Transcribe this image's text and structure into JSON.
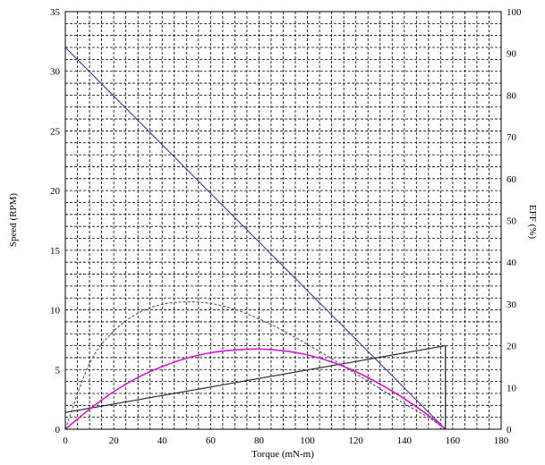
{
  "chart_data": {
    "type": "line",
    "title": "",
    "xlabel": "Torque (mN-m)",
    "ylabel": "Speed (RPM)",
    "y2label": "EFF (%)",
    "xlim": [
      0,
      180
    ],
    "ylim": [
      0,
      35
    ],
    "y2lim": [
      0,
      100
    ],
    "x_ticks": [
      "0",
      "20",
      "40",
      "60",
      "80",
      "100",
      "120",
      "140",
      "160",
      "180"
    ],
    "y_ticks": [
      "0",
      "5",
      "10",
      "15",
      "20",
      "25",
      "30",
      "35"
    ],
    "y2_ticks": [
      "0",
      "10",
      "20",
      "30",
      "40",
      "50",
      "60",
      "70",
      "80",
      "90",
      "100"
    ],
    "grid": true,
    "grid_style": "dashed",
    "end_marker_x": 157,
    "series": [
      {
        "color": "#3a3aa0",
        "style": "solid",
        "axis": "left",
        "x": [
          0,
          157
        ],
        "y": [
          32,
          0
        ]
      },
      {
        "color": "#222222",
        "style": "solid",
        "axis": "left",
        "x": [
          0,
          157
        ],
        "y": [
          1.4,
          7.0
        ]
      },
      {
        "color": "#555555",
        "style": "dashed",
        "axis": "right",
        "x": [
          0,
          10,
          20,
          30,
          40,
          50,
          60,
          70,
          80,
          90,
          100,
          110,
          120,
          130,
          140,
          150,
          157
        ],
        "y": [
          0,
          15.8,
          23.5,
          27.8,
          29.9,
          30.5,
          30.1,
          28.7,
          26.4,
          23.6,
          20.3,
          16.9,
          13.3,
          9.7,
          6.1,
          2.8,
          0
        ]
      },
      {
        "color": "#d417d4",
        "style": "solid",
        "axis": "right",
        "x": [
          0,
          10,
          20,
          30,
          40,
          50,
          60,
          70,
          80,
          90,
          100,
          110,
          120,
          130,
          140,
          150,
          157
        ],
        "y": [
          0,
          4.8,
          9.0,
          12.4,
          15.0,
          17.0,
          18.3,
          19.0,
          19.2,
          18.8,
          17.8,
          16.1,
          13.8,
          10.8,
          7.3,
          3.3,
          0
        ]
      }
    ]
  }
}
